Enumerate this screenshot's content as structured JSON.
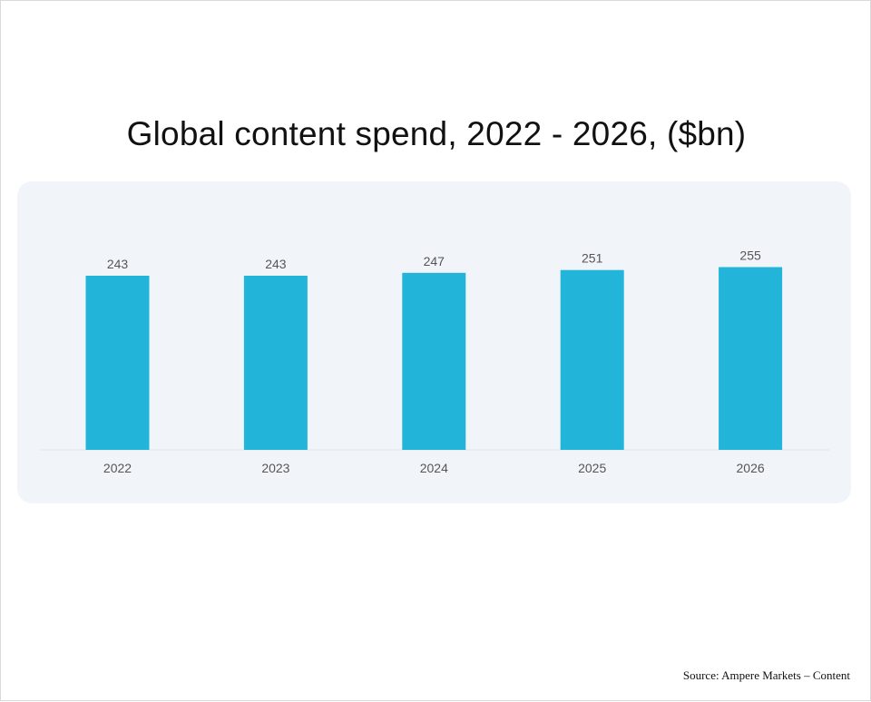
{
  "colors": {
    "bar": "#23b4da",
    "panel": "#f1f5fa",
    "baseline": "#dfe5ea",
    "label": "#555555"
  },
  "chart_data": {
    "type": "bar",
    "title": "Global content spend, 2022 - 2026, ($bn)",
    "categories": [
      "2022",
      "2023",
      "2024",
      "2025",
      "2026"
    ],
    "values": [
      243,
      243,
      247,
      251,
      255
    ],
    "xlabel": "",
    "ylabel": "",
    "ylim": [
      0,
      255
    ],
    "grid": false,
    "legend": "none"
  },
  "source": "Source: Ampere Markets – Content"
}
